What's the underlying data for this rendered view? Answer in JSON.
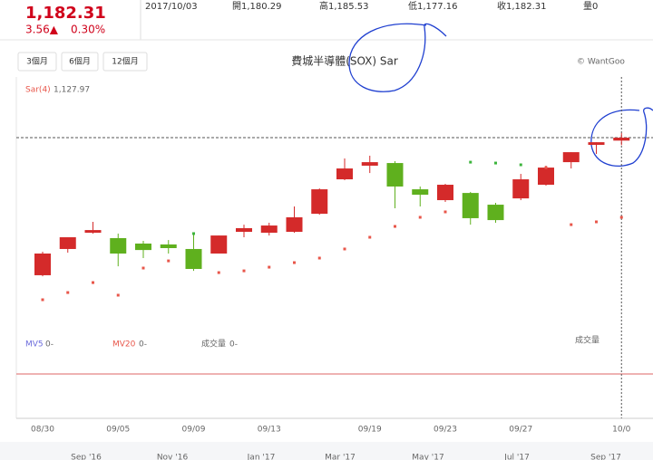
{
  "header": {
    "price": "1,182.31",
    "change": "3.56▲",
    "percent": "0.30%",
    "date": "2017/10/03",
    "open": "開1,180.29",
    "high": "高1,185.53",
    "low": "低1,177.16",
    "close": "收1,182.31",
    "volume": "量0"
  },
  "buttons": [
    "3個月",
    "6個月",
    "12個月"
  ],
  "credit": "© WantGoo",
  "sar_legend": {
    "name": "Sar(4)",
    "value": "1,127.97"
  },
  "volume_panel": {
    "mv5": "MV5",
    "mv5_value": "0-",
    "mv20": "MV20",
    "mv20_value": "0-",
    "volume": "成交量",
    "volume_value": "0-",
    "axis_label": "成交量"
  },
  "navigator": [
    "Sep '16",
    "Nov '16",
    "Jan '17",
    "Mar '17",
    "May '17",
    "Jul '17",
    "Sep '17"
  ],
  "chart_data": {
    "type": "candlestick",
    "title": "費城半導體(SOX) Sar",
    "categories": [
      "08/30",
      null,
      null,
      "09/05",
      null,
      null,
      "09/09",
      null,
      null,
      "09/13",
      null,
      null,
      null,
      "09/19",
      null,
      null,
      "09/23",
      null,
      null,
      "09/27",
      null,
      null,
      null,
      "10/0"
    ],
    "open": [
      1088.5,
      1106.4,
      1117.5,
      1113.8,
      1110.1,
      1109.5,
      1106.4,
      1103.3,
      1118.1,
      1117.5,
      1118.1,
      1130.4,
      1153.9,
      1163.2,
      1165.0,
      1147.1,
      1139.7,
      1144.6,
      1136.6,
      1140.9,
      1150.2,
      1165.6,
      1177.4,
      1180.29
    ],
    "high": [
      1104.5,
      1114.4,
      1124.9,
      1116.9,
      1111.9,
      1112.5,
      1116.9,
      1115.6,
      1123.0,
      1124.3,
      1135.4,
      1147.7,
      1168.1,
      1170.0,
      1166.3,
      1149.0,
      1150.8,
      1145.3,
      1137.9,
      1157.6,
      1163.2,
      1172.4,
      1179.2,
      1185.53
    ],
    "low": [
      1087.8,
      1103.9,
      1116.9,
      1094.6,
      1100.2,
      1103.3,
      1091.5,
      1103.3,
      1114.4,
      1115.6,
      1117.5,
      1129.8,
      1153.3,
      1158.2,
      1134.2,
      1135.4,
      1138.5,
      1123.0,
      1124.3,
      1139.7,
      1149.6,
      1161.3,
      1171.2,
      1177.16
    ],
    "close": [
      1103.3,
      1114.4,
      1119.3,
      1103.3,
      1105.7,
      1107.0,
      1092.8,
      1115.6,
      1120.6,
      1122.4,
      1128.0,
      1147.1,
      1161.3,
      1165.6,
      1149.0,
      1143.4,
      1150.2,
      1127.4,
      1126.1,
      1153.9,
      1161.9,
      1172.4,
      1179.2,
      1182.31
    ],
    "sar": {
      "name": "Sar(4)",
      "values": [
        1071.8,
        1076.7,
        1083.5,
        1074.9,
        1093.4,
        1098.3,
        1116.9,
        1090.3,
        1091.5,
        1094.0,
        1097.1,
        1100.2,
        1106.4,
        1114.4,
        1121.8,
        1128.0,
        1131.7,
        1165.6,
        1165.0,
        1163.8,
        1161.9,
        1123.0,
        1124.9,
        1127.97
      ]
    },
    "up_color": "#d42a2a",
    "down_color": "#5fb01e",
    "sar_above_color": "#3cb43c",
    "sar_below_color": "#e8564a",
    "ylim": [
      1053.9,
      1220.6
    ]
  }
}
